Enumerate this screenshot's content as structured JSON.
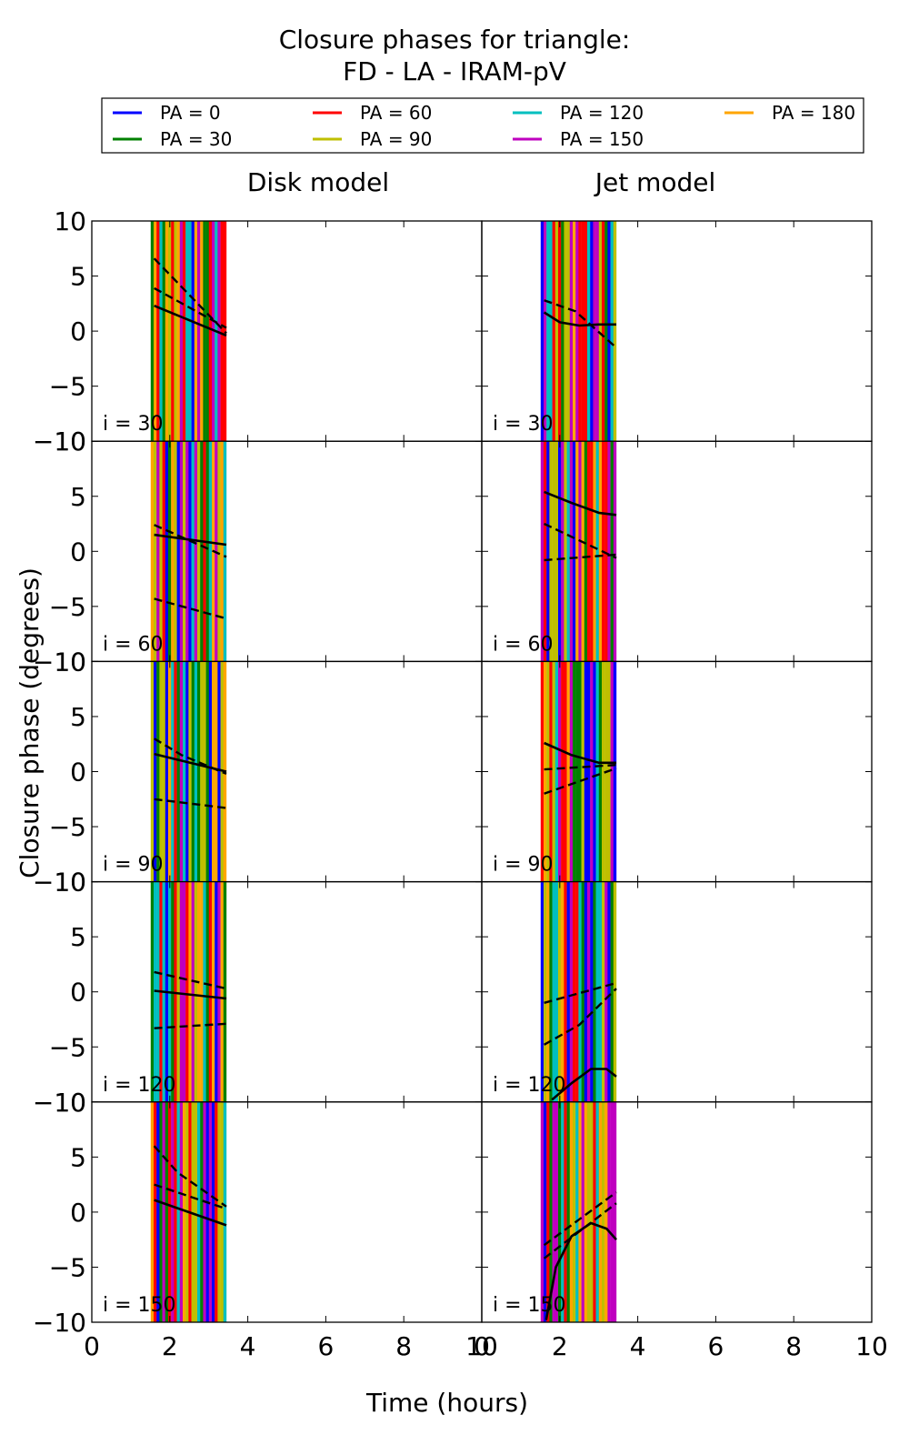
{
  "title_line1": "Closure phases for triangle:",
  "title_line2": "FD - LA - IRAM-pV",
  "legend": [
    {
      "label": "PA = 0",
      "color": "#0000ff"
    },
    {
      "label": "PA = 30",
      "color": "#008000"
    },
    {
      "label": "PA = 60",
      "color": "#ff0000"
    },
    {
      "label": "PA = 90",
      "color": "#bfbf00"
    },
    {
      "label": "PA = 120",
      "color": "#00bfbf"
    },
    {
      "label": "PA = 150",
      "color": "#bf00bf"
    },
    {
      "label": "PA = 180",
      "color": "#ffa500"
    }
  ],
  "columns": [
    "Disk model",
    "Jet model"
  ],
  "ylabel": "Closure phase (degrees)",
  "xlabel": "Time (hours)",
  "xlim": [
    0,
    10
  ],
  "ylim": [
    -10,
    10
  ],
  "xticks": [
    "0",
    "2",
    "4",
    "6",
    "8",
    "10"
  ],
  "yticks": [
    "10",
    "5",
    "0",
    "−5",
    "−10"
  ],
  "chart_data": {
    "type": "line",
    "time_range_hours": [
      1.55,
      3.45
    ],
    "panels": [
      {
        "column": "Disk model",
        "inclination": "i = 30",
        "solid": [
          [
            1.6,
            2.3
          ],
          [
            3.45,
            -0.4
          ]
        ],
        "dashed": [
          [
            [
              1.6,
              3.9
            ],
            [
              3.45,
              0.3
            ]
          ],
          [
            [
              1.6,
              6.6
            ],
            [
              3.45,
              -0.2
            ]
          ]
        ]
      },
      {
        "column": "Jet model",
        "inclination": "i = 30",
        "solid": [
          [
            1.6,
            1.7
          ],
          [
            2.0,
            0.8
          ],
          [
            2.5,
            0.5
          ],
          [
            3.0,
            0.6
          ],
          [
            3.45,
            0.6
          ]
        ],
        "dashed": [
          [
            [
              1.6,
              2.8
            ],
            [
              2.4,
              1.8
            ],
            [
              3.45,
              -1.5
            ]
          ]
        ]
      },
      {
        "column": "Disk model",
        "inclination": "i = 60",
        "solid": [
          [
            1.6,
            1.5
          ],
          [
            3.45,
            0.6
          ]
        ],
        "dashed": [
          [
            [
              1.6,
              2.4
            ],
            [
              3.45,
              -0.5
            ]
          ],
          [
            [
              1.6,
              -4.3
            ],
            [
              3.45,
              -6.1
            ]
          ]
        ]
      },
      {
        "column": "Jet model",
        "inclination": "i = 60",
        "solid": [
          [
            1.6,
            5.4
          ],
          [
            2.3,
            4.4
          ],
          [
            3.0,
            3.5
          ],
          [
            3.45,
            3.3
          ]
        ],
        "dashed": [
          [
            [
              1.6,
              2.5
            ],
            [
              3.45,
              -0.6
            ]
          ],
          [
            [
              1.6,
              -0.8
            ],
            [
              3.45,
              -0.3
            ]
          ]
        ]
      },
      {
        "column": "Disk model",
        "inclination": "i = 90",
        "solid": [
          [
            1.6,
            1.6
          ],
          [
            3.45,
            0.0
          ]
        ],
        "dashed": [
          [
            [
              1.6,
              3.0
            ],
            [
              2.3,
              1.5
            ],
            [
              3.45,
              -0.2
            ]
          ],
          [
            [
              1.6,
              -2.5
            ],
            [
              3.45,
              -3.3
            ]
          ]
        ]
      },
      {
        "column": "Jet model",
        "inclination": "i = 90",
        "solid": [
          [
            1.6,
            2.6
          ],
          [
            2.3,
            1.5
          ],
          [
            3.0,
            0.8
          ],
          [
            3.45,
            0.8
          ]
        ],
        "dashed": [
          [
            [
              1.6,
              -2.0
            ],
            [
              3.45,
              0.3
            ]
          ],
          [
            [
              1.6,
              0.2
            ],
            [
              3.45,
              0.6
            ]
          ]
        ]
      },
      {
        "column": "Disk model",
        "inclination": "i = 120",
        "solid": [
          [
            1.6,
            0.1
          ],
          [
            3.45,
            -0.6
          ]
        ],
        "dashed": [
          [
            [
              1.6,
              1.8
            ],
            [
              3.45,
              0.3
            ]
          ],
          [
            [
              1.6,
              -3.3
            ],
            [
              3.45,
              -2.9
            ]
          ]
        ]
      },
      {
        "column": "Jet model",
        "inclination": "i = 120",
        "solid": [
          [
            1.8,
            -9.8
          ],
          [
            2.3,
            -8.3
          ],
          [
            2.8,
            -7.0
          ],
          [
            3.2,
            -7.0
          ],
          [
            3.45,
            -7.7
          ]
        ],
        "dashed": [
          [
            [
              1.6,
              -4.8
            ],
            [
              2.5,
              -3.0
            ],
            [
              3.45,
              0.3
            ]
          ],
          [
            [
              1.6,
              -1.0
            ],
            [
              3.45,
              0.8
            ]
          ]
        ]
      },
      {
        "column": "Disk model",
        "inclination": "i = 150",
        "solid": [
          [
            1.6,
            1.1
          ],
          [
            3.45,
            -1.2
          ]
        ],
        "dashed": [
          [
            [
              1.6,
              6.0
            ],
            [
              2.2,
              3.6
            ],
            [
              3.45,
              0.5
            ]
          ],
          [
            [
              1.6,
              2.5
            ],
            [
              3.45,
              0.3
            ]
          ]
        ]
      },
      {
        "column": "Jet model",
        "inclination": "i = 150",
        "solid": [
          [
            1.65,
            -9.8
          ],
          [
            1.9,
            -5.0
          ],
          [
            2.3,
            -2.2
          ],
          [
            2.8,
            -1.0
          ],
          [
            3.2,
            -1.5
          ],
          [
            3.45,
            -2.5
          ]
        ],
        "dashed": [
          [
            [
              1.6,
              -4.2
            ],
            [
              3.45,
              0.8
            ]
          ],
          [
            [
              1.6,
              -3.0
            ],
            [
              3.45,
              1.8
            ]
          ]
        ]
      }
    ]
  }
}
